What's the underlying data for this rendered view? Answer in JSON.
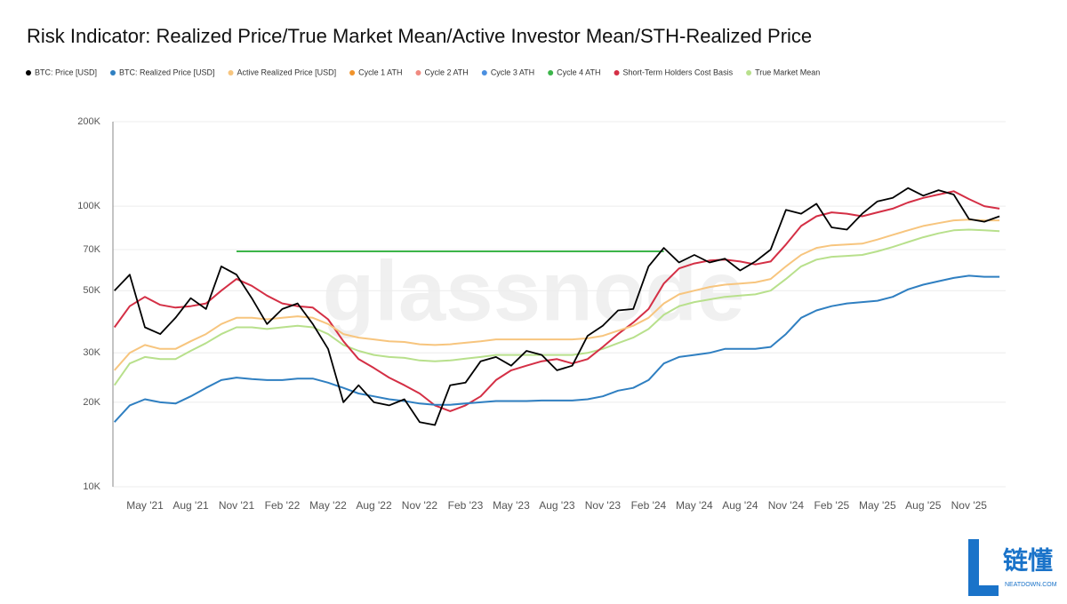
{
  "chart_data": {
    "type": "line",
    "title": "Risk Indicator: Realized Price/True Market Mean/Active Investor Mean/STH-Realized Price",
    "watermark": "glassnode",
    "log_y": true,
    "grid": true,
    "legend": "top",
    "categories": [
      null,
      null,
      "May '21",
      null,
      null,
      "Aug '21",
      null,
      null,
      "Nov '21",
      null,
      null,
      "Feb '22",
      null,
      null,
      "May '22",
      null,
      null,
      "Aug '22",
      null,
      null,
      "Nov '22",
      null,
      null,
      "Feb '23",
      null,
      null,
      "May '23",
      null,
      null,
      "Aug '23",
      null,
      null,
      "Nov '23",
      null,
      null,
      "Feb '24",
      null,
      null,
      "May '24",
      null,
      null,
      "Aug '24",
      null,
      null,
      "Nov '24",
      null,
      null,
      "Feb '25",
      null,
      null,
      "May '25",
      null,
      null,
      "Aug '25",
      null,
      null,
      "Nov '25",
      null,
      null
    ],
    "ylim": [
      10000,
      200000
    ],
    "yticks": [
      {
        "value": 10000,
        "label": "10K"
      },
      {
        "value": 20000,
        "label": "20K"
      },
      {
        "value": 30000,
        "label": "30K"
      },
      {
        "value": 50000,
        "label": "50K"
      },
      {
        "value": 70000,
        "label": "70K"
      },
      {
        "value": 100000,
        "label": "100K"
      },
      {
        "value": 200000,
        "label": "200K"
      }
    ],
    "series": [
      {
        "name": "BTC: Price [USD]",
        "color": "#000000",
        "values": [
          50000,
          57000,
          37000,
          35000,
          40000,
          47000,
          43000,
          61000,
          57000,
          47000,
          38000,
          43000,
          45000,
          38000,
          31000,
          20000,
          23000,
          20000,
          19500,
          20500,
          17000,
          16600,
          23000,
          23500,
          28000,
          29000,
          27000,
          30500,
          29500,
          26000,
          27000,
          34500,
          37500,
          42500,
          43000,
          61000,
          71000,
          63000,
          67000,
          63000,
          65000,
          59000,
          63500,
          70000,
          97000,
          94000,
          102000,
          84000,
          82500,
          94000,
          104000,
          107000,
          116000,
          109000,
          114000,
          110000,
          90000,
          88000,
          92000
        ]
      },
      {
        "name": "BTC: Realized Price [USD]",
        "color": "#2f7fc1",
        "values": [
          17000,
          19500,
          20500,
          20000,
          19800,
          21000,
          22500,
          24000,
          24500,
          24200,
          24000,
          24000,
          24300,
          24300,
          23500,
          22500,
          21500,
          21000,
          20500,
          20200,
          19800,
          19600,
          19600,
          19800,
          20000,
          20200,
          20200,
          20200,
          20300,
          20300,
          20300,
          20500,
          21000,
          22000,
          22500,
          24000,
          27500,
          29000,
          29500,
          30000,
          31000,
          31000,
          31000,
          31500,
          35000,
          40000,
          42500,
          44000,
          45000,
          45500,
          46000,
          47500,
          50500,
          52500,
          54000,
          55500,
          56500,
          56000,
          56000
        ]
      },
      {
        "name": "Active Realized Price [USD]",
        "color": "#f7c57e",
        "values": [
          26000,
          30000,
          32000,
          31000,
          31000,
          33000,
          35000,
          38000,
          40000,
          40000,
          39500,
          40000,
          40500,
          40000,
          38000,
          35000,
          34000,
          33500,
          33000,
          32800,
          32200,
          32000,
          32200,
          32600,
          33000,
          33500,
          33500,
          33500,
          33500,
          33500,
          33500,
          33800,
          34500,
          36000,
          37500,
          40000,
          45000,
          48500,
          50000,
          51500,
          52500,
          53000,
          53500,
          55000,
          61000,
          67000,
          71000,
          72500,
          73000,
          73500,
          76000,
          79000,
          82000,
          85000,
          87000,
          89000,
          89500,
          89000,
          89000
        ]
      },
      {
        "name": "Cycle 1 ATH",
        "color": "#f0932b",
        "values": [
          null,
          null,
          null,
          null,
          null,
          null,
          null,
          null,
          null,
          null,
          null,
          null,
          null,
          null,
          null,
          null,
          null,
          null,
          null,
          null,
          null,
          null,
          null,
          null,
          null,
          null,
          null,
          null,
          null,
          null,
          null,
          null,
          null,
          null,
          null,
          null,
          null,
          null,
          null,
          null,
          null,
          null,
          null,
          null,
          null,
          null,
          null,
          null,
          null,
          null,
          null,
          null,
          null,
          null,
          null,
          null,
          null,
          null,
          null
        ]
      },
      {
        "name": "Cycle 2 ATH",
        "color": "#f08a80",
        "values": [
          null,
          null,
          null,
          null,
          null,
          null,
          null,
          null,
          null,
          null,
          null,
          null,
          null,
          null,
          null,
          null,
          null,
          null,
          null,
          null,
          null,
          null,
          null,
          null,
          null,
          null,
          null,
          null,
          null,
          null,
          null,
          null,
          null,
          null,
          null,
          null,
          null,
          null,
          null,
          null,
          null,
          null,
          null,
          null,
          null,
          null,
          null,
          null,
          null,
          null,
          null,
          null,
          null,
          null,
          null,
          null,
          null,
          null,
          null
        ]
      },
      {
        "name": "Cycle 3 ATH",
        "color": "#4a8fe0",
        "values": [
          null,
          null,
          null,
          null,
          null,
          null,
          null,
          null,
          null,
          null,
          null,
          null,
          null,
          null,
          null,
          null,
          null,
          null,
          null,
          null,
          null,
          null,
          null,
          null,
          null,
          null,
          null,
          null,
          null,
          null,
          null,
          null,
          null,
          null,
          null,
          null,
          null,
          null,
          null,
          null,
          null,
          null,
          null,
          null,
          null,
          null,
          null,
          null,
          null,
          null,
          null,
          null,
          null,
          null,
          null,
          null,
          null,
          null,
          null
        ]
      },
      {
        "name": "Cycle 4 ATH",
        "color": "#3cb54a",
        "values": [
          null,
          null,
          null,
          null,
          null,
          null,
          null,
          null,
          69000,
          69000,
          69000,
          69000,
          69000,
          69000,
          69000,
          69000,
          69000,
          69000,
          69000,
          69000,
          69000,
          69000,
          69000,
          69000,
          69000,
          69000,
          69000,
          69000,
          69000,
          69000,
          69000,
          69000,
          69000,
          69000,
          69000,
          69000,
          69000,
          null,
          null,
          null,
          null,
          null,
          null,
          null,
          null,
          null,
          null,
          null,
          null,
          null,
          null,
          null,
          null,
          null,
          null,
          null,
          null,
          null,
          null
        ]
      },
      {
        "name": "Short-Term Holders Cost Basis",
        "color": "#d42f45",
        "values": [
          37000,
          44000,
          47500,
          44500,
          43500,
          44000,
          45000,
          50000,
          55000,
          52000,
          48000,
          45000,
          44000,
          43500,
          39500,
          33000,
          28500,
          26500,
          24500,
          23000,
          21500,
          19500,
          18600,
          19500,
          21000,
          24000,
          26000,
          27000,
          28000,
          28500,
          27500,
          28500,
          31500,
          35000,
          38500,
          43000,
          53000,
          60000,
          62500,
          64000,
          64500,
          63500,
          62000,
          63500,
          73000,
          85000,
          92000,
          95000,
          94000,
          92000,
          95000,
          98000,
          103000,
          107000,
          110000,
          113000,
          106000,
          100000,
          98000
        ]
      },
      {
        "name": "True Market Mean",
        "color": "#b8e08c",
        "values": [
          23000,
          27500,
          29000,
          28500,
          28500,
          30500,
          32500,
          35000,
          37000,
          37000,
          36500,
          37000,
          37500,
          37000,
          35000,
          32000,
          30500,
          29500,
          29000,
          28800,
          28200,
          28000,
          28200,
          28600,
          29000,
          29500,
          29500,
          29500,
          29500,
          29500,
          29500,
          30000,
          31000,
          32500,
          34000,
          36500,
          41000,
          44000,
          45500,
          46500,
          47500,
          48000,
          48500,
          50000,
          55000,
          61000,
          64500,
          66000,
          66500,
          67000,
          69000,
          71500,
          74500,
          77500,
          80000,
          82000,
          82500,
          82000,
          81500
        ]
      }
    ]
  },
  "brand": {
    "name": "链懂",
    "site": "NEATDOWN.COM"
  }
}
